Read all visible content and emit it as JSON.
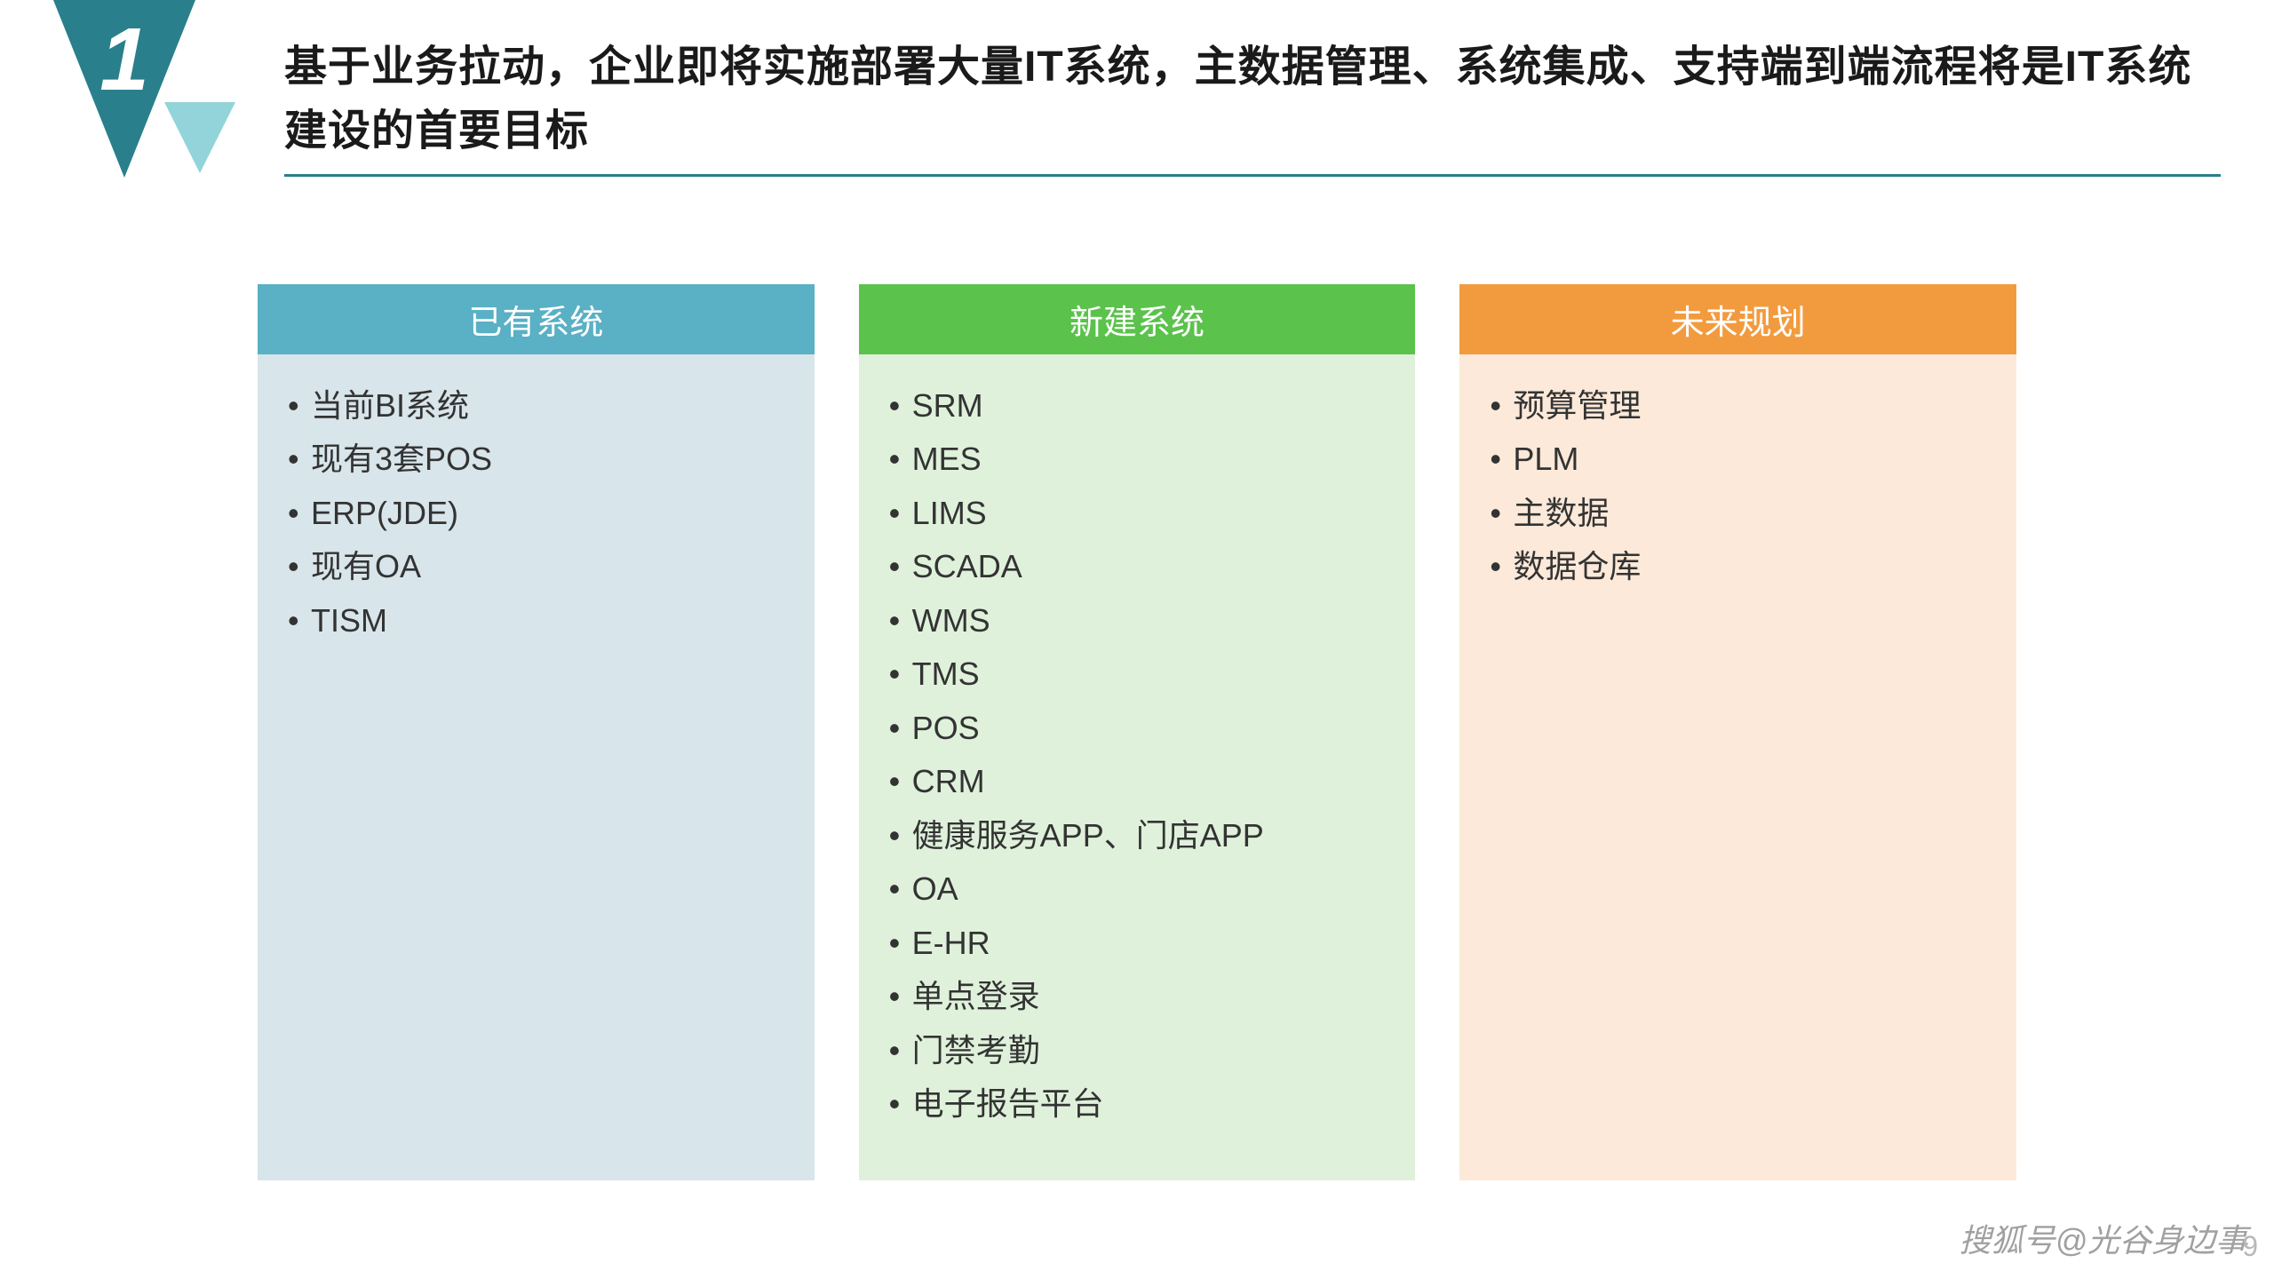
{
  "slide": {
    "number": "1",
    "title": "基于业务拉动，企业即将实施部署大量IT系统，主数据管理、系统集成、支持端到端流程将是IT系统建设的首要目标",
    "badge_color": "#2a7f8c",
    "badge_accent_color": "#7fcdd4",
    "rule_color": "#2a7f8c"
  },
  "columns": [
    {
      "header": "已有系统",
      "header_bg": "#5ab0c4",
      "body_bg": "#d8e5ea",
      "items": [
        "当前BI系统",
        "现有3套POS",
        "ERP(JDE)",
        "现有OA",
        "TISM"
      ]
    },
    {
      "header": "新建系统",
      "header_bg": "#5bc24c",
      "body_bg": "#dff1db",
      "items": [
        "SRM",
        "MES",
        "LIMS",
        "SCADA",
        "WMS",
        "TMS",
        "POS",
        "CRM",
        "健康服务APP、门店APP",
        "OA",
        "E-HR",
        "单点登录",
        "门禁考勤",
        "电子报告平台"
      ]
    },
    {
      "header": "未来规划",
      "header_bg": "#f29b3e",
      "body_bg": "#fce9d9",
      "items": [
        "预算管理",
        "PLM",
        "主数据",
        "数据仓库"
      ]
    }
  ],
  "watermark": "搜狐号@光谷身边事",
  "page_number": "9"
}
